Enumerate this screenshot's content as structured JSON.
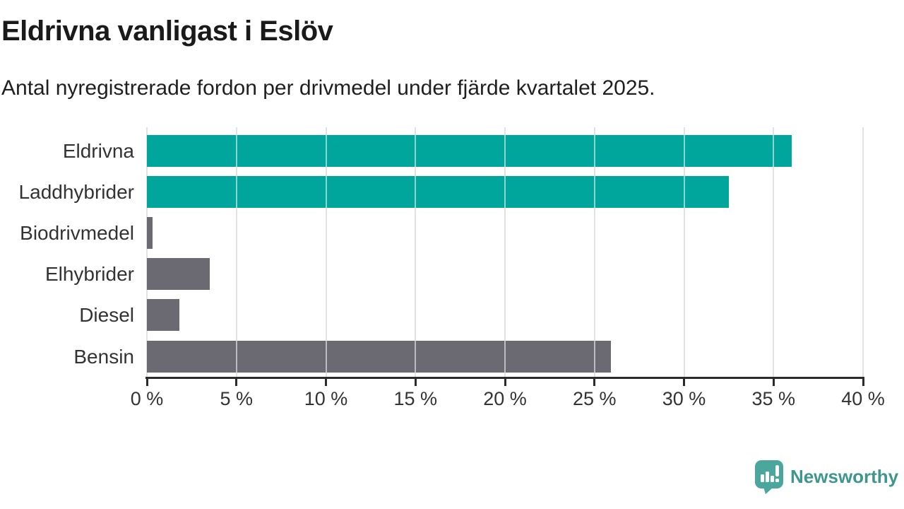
{
  "chart_data": {
    "type": "bar",
    "orientation": "horizontal",
    "title": "Eldrivna vanligast i Eslöv",
    "subtitle": "Antal nyregistrerade fordon per drivmedel under fjärde kvartalet 2025.",
    "categories": [
      "Eldrivna",
      "Laddhybrider",
      "Biodrivmedel",
      "Elhybrider",
      "Diesel",
      "Bensin"
    ],
    "values": [
      36,
      32.5,
      0.3,
      3.5,
      1.8,
      25.9
    ],
    "unit": "%",
    "bar_colors": [
      "#00a59c",
      "#00a59c",
      "#6b6a72",
      "#6b6a72",
      "#6b6a72",
      "#6b6a72"
    ],
    "xlim": [
      0,
      40
    ],
    "x_ticks": [
      0,
      5,
      10,
      15,
      20,
      25,
      30,
      35,
      40
    ],
    "x_tick_labels": [
      "0 %",
      "5 %",
      "10 %",
      "15 %",
      "20 %",
      "25 %",
      "30 %",
      "35 %",
      "40 %"
    ],
    "grid": true,
    "legend": "none"
  },
  "colors": {
    "accent_teal": "#00a59c",
    "neutral_gray": "#6b6a72",
    "gridline": "#e2e2e2",
    "axis": "#2b2b2b",
    "title_text": "#1a1a1a",
    "label_text": "#333333",
    "logo_icon": "#4ba69e",
    "logo_text": "#3e968e"
  },
  "footer": {
    "brand": "Newsworthy",
    "logo_icon_name": "newsworthy-speech-bubble-barchart-icon"
  }
}
